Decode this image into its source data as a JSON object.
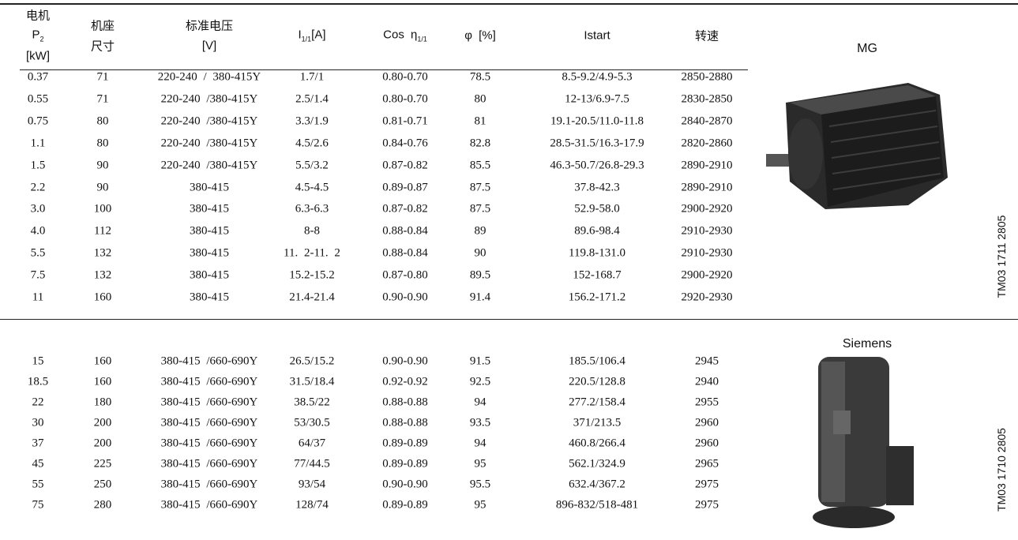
{
  "header": [
    [
      [
        {
          "text": "电机"
        }
      ],
      [
        {
          "text": "P",
          "sub": "2"
        }
      ],
      [
        {
          "text": "[kW]"
        }
      ]
    ],
    [
      [
        {
          "text": "机座"
        }
      ],
      [
        {
          "text": "尺寸"
        }
      ]
    ],
    [
      [
        {
          "text": "标准电压"
        }
      ],
      [
        {
          "text": "[V]"
        }
      ]
    ],
    [
      [
        {
          "text": "I",
          "sub": "1/1"
        },
        {
          "text": "[A]"
        }
      ]
    ],
    [
      [
        {
          "text": "Cos η",
          "sub": "1/1"
        }
      ]
    ],
    [
      [
        {
          "text": "φ [%]"
        }
      ]
    ],
    [
      [
        {
          "text": "Istart"
        }
      ]
    ],
    [
      [
        {
          "text": "转速"
        }
      ]
    ]
  ],
  "sections": [
    {
      "label": "MG",
      "code": "TM03 1711 2805",
      "rows": [
        [
          "0.37",
          "71",
          "220-240 / 380-415Y",
          "1.7/1",
          "0.80-0.70",
          "78.5",
          "8.5-9.2/4.9-5.3",
          "2850-2880"
        ],
        [
          "0.55",
          "71",
          "220-240 /380-415Y",
          "2.5/1.4",
          "0.80-0.70",
          "80",
          "12-13/6.9-7.5",
          "2830-2850"
        ],
        [
          "0.75",
          "80",
          "220-240 /380-415Y",
          "3.3/1.9",
          "0.81-0.71",
          "81",
          "19.1-20.5/11.0-11.8",
          "2840-2870"
        ],
        [
          "1.1",
          "80",
          "220-240 /380-415Y",
          "4.5/2.6",
          "0.84-0.76",
          "82.8",
          "28.5-31.5/16.3-17.9",
          "2820-2860"
        ],
        [
          "1.5",
          "90",
          "220-240 /380-415Y",
          "5.5/3.2",
          "0.87-0.82",
          "85.5",
          "46.3-50.7/26.8-29.3",
          "2890-2910"
        ],
        [
          "2.2",
          "90",
          "380-415",
          "4.5-4.5",
          "0.89-0.87",
          "87.5",
          "37.8-42.3",
          "2890-2910"
        ],
        [
          "3.0",
          "100",
          "380-415",
          "6.3-6.3",
          "0.87-0.82",
          "87.5",
          "52.9-58.0",
          "2900-2920"
        ],
        [
          "4.0",
          "112",
          "380-415",
          "8-8",
          "0.88-0.84",
          "89",
          "89.6-98.4",
          "2910-2930"
        ],
        [
          "5.5",
          "132",
          "380-415",
          "11. 2-11. 2",
          "0.88-0.84",
          "90",
          "119.8-131.0",
          "2910-2930"
        ],
        [
          "7.5",
          "132",
          "380-415",
          "15.2-15.2",
          "0.87-0.80",
          "89.5",
          "152-168.7",
          "2900-2920"
        ],
        [
          "11",
          "160",
          "380-415",
          "21.4-21.4",
          "0.90-0.90",
          "91.4",
          "156.2-171.2",
          "2920-2930"
        ]
      ]
    },
    {
      "label": "Siemens",
      "code": "TM03 1710 2805",
      "rows": [
        [
          "15",
          "160",
          "380-415 /660-690Y",
          "26.5/15.2",
          "0.90-0.90",
          "91.5",
          "185.5/106.4",
          "2945"
        ],
        [
          "18.5",
          "160",
          "380-415 /660-690Y",
          "31.5/18.4",
          "0.92-0.92",
          "92.5",
          "220.5/128.8",
          "2940"
        ],
        [
          "22",
          "180",
          "380-415 /660-690Y",
          "38.5/22",
          "0.88-0.88",
          "94",
          "277.2/158.4",
          "2955"
        ],
        [
          "30",
          "200",
          "380-415 /660-690Y",
          "53/30.5",
          "0.88-0.88",
          "93.5",
          "371/213.5",
          "2960"
        ],
        [
          "37",
          "200",
          "380-415 /660-690Y",
          "64/37",
          "0.89-0.89",
          "94",
          "460.8/266.4",
          "2960"
        ],
        [
          "45",
          "225",
          "380-415 /660-690Y",
          "77/44.5",
          "0.89-0.89",
          "95",
          "562.1/324.9",
          "2965"
        ],
        [
          "55",
          "250",
          "380-415 /660-690Y",
          "93/54",
          "0.90-0.90",
          "95.5",
          "632.4/367.2",
          "2975"
        ],
        [
          "75",
          "280",
          "380-415 /660-690Y",
          "128/74",
          "0.89-0.89",
          "95",
          "896-832/518-481",
          "2975"
        ]
      ]
    }
  ]
}
